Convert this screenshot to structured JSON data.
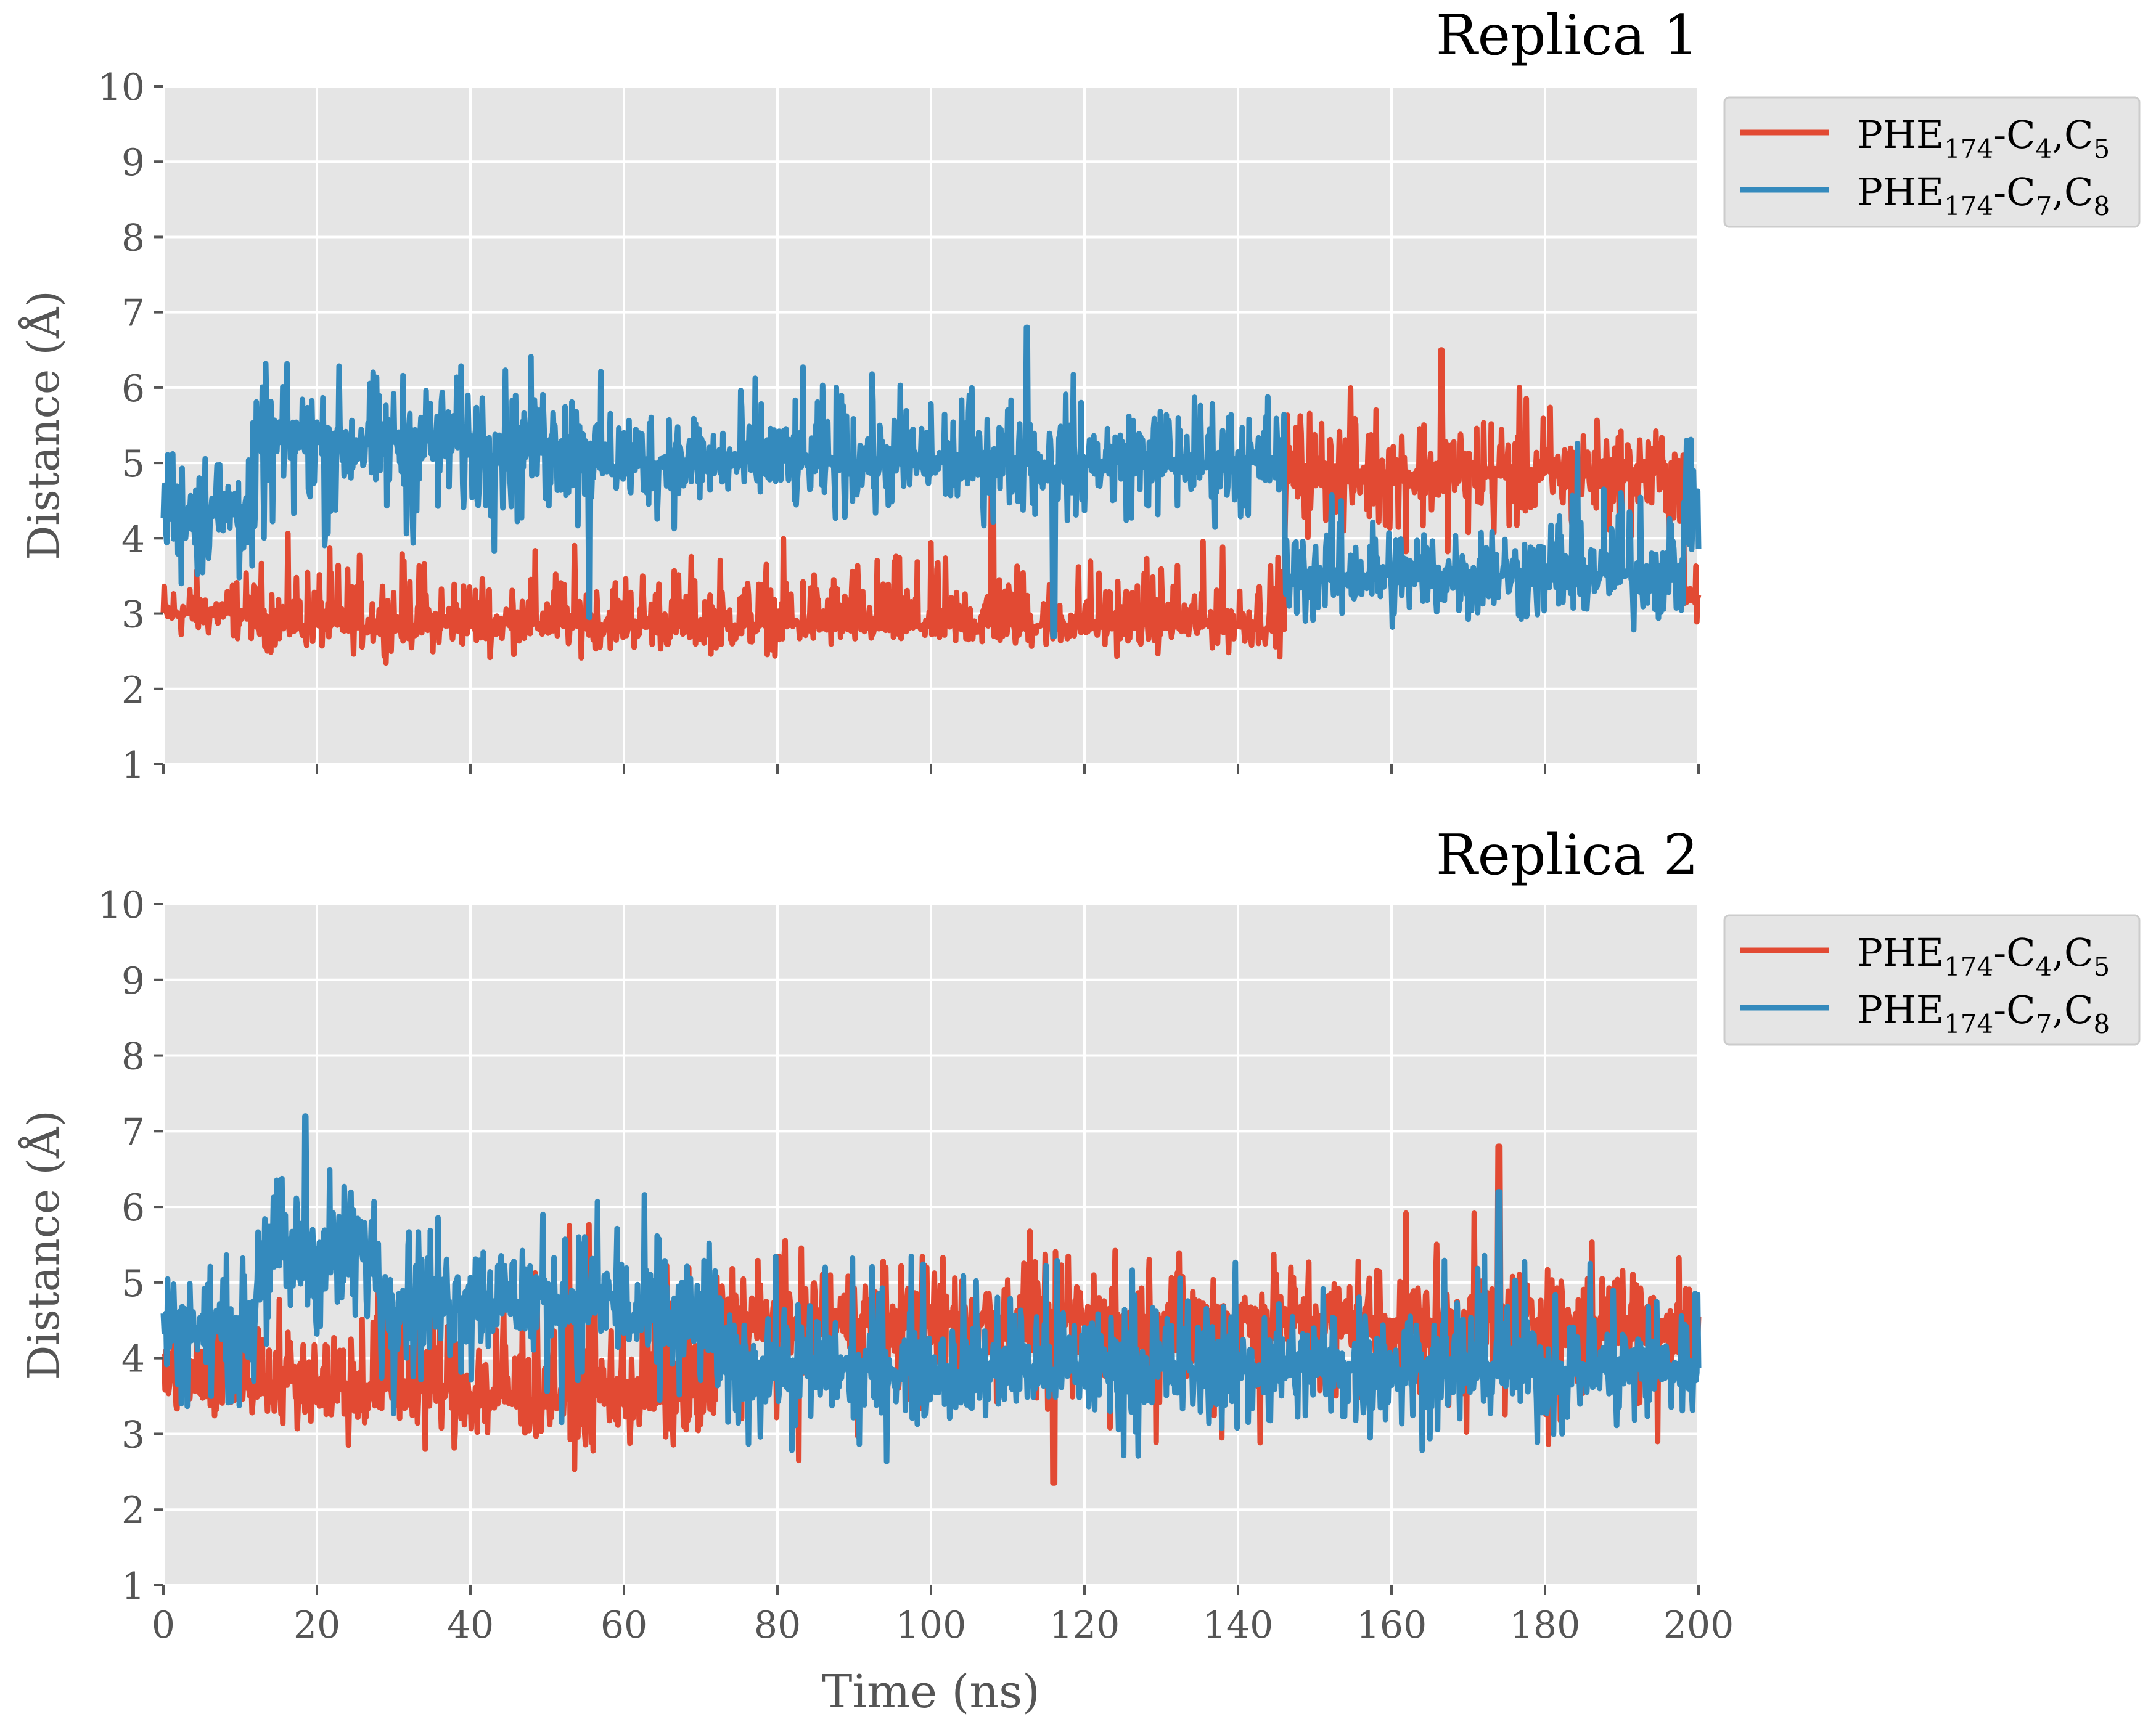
{
  "chart_data": [
    {
      "type": "line",
      "title": "Replica 1",
      "xlabel": "",
      "ylabel": "Distance (Å)",
      "xlim": [
        0,
        200
      ],
      "ylim": [
        1,
        10
      ],
      "xticks": [
        0,
        20,
        40,
        60,
        80,
        100,
        120,
        140,
        160,
        180,
        200
      ],
      "yticks": [
        1,
        2,
        3,
        4,
        5,
        6,
        7,
        8,
        9,
        10
      ],
      "show_xtick_labels": false,
      "grid": true,
      "legend_position": "outside-right-top",
      "series": [
        {
          "name": "PHE174-C4,C5",
          "label_parts": {
            "base": "PHE",
            "sub1": "174",
            "mid1": "-C",
            "sub2": "4",
            "mid2": ",C",
            "sub3": "5"
          },
          "color": "#E24A33",
          "segments": [
            {
              "t": [
                0,
                12
              ],
              "mean": 3.0,
              "low": 2.4,
              "high": 3.9
            },
            {
              "t": [
                12,
                146
              ],
              "mean": 2.85,
              "low": 2.3,
              "high": 4.3
            },
            {
              "t": [
                146,
                181
              ],
              "mean": 4.85,
              "low": 3.5,
              "high": 6.4
            },
            {
              "t": [
                181,
                198
              ],
              "mean": 4.9,
              "low": 3.2,
              "high": 6.0
            },
            {
              "t": [
                198,
                200
              ],
              "mean": 3.2,
              "low": 2.6,
              "high": 3.9
            }
          ],
          "spikes": [
            [
              166.5,
              6.5
            ],
            [
              108,
              5.1
            ]
          ]
        },
        {
          "name": "PHE174-C7,C8",
          "label_parts": {
            "base": "PHE",
            "sub1": "174",
            "mid1": "-C",
            "sub2": "7",
            "mid2": ",C",
            "sub3": "8"
          },
          "color": "#348ABD",
          "segments": [
            {
              "t": [
                0,
                12
              ],
              "mean": 4.4,
              "low": 2.6,
              "high": 6.0
            },
            {
              "t": [
                12,
                55
              ],
              "mean": 5.3,
              "low": 3.2,
              "high": 6.75
            },
            {
              "t": [
                55,
                146
              ],
              "mean": 5.0,
              "low": 3.8,
              "high": 6.6
            },
            {
              "t": [
                146,
                181
              ],
              "mean": 3.5,
              "low": 2.4,
              "high": 5.0
            },
            {
              "t": [
                181,
                198
              ],
              "mean": 3.5,
              "low": 2.4,
              "high": 5.8
            },
            {
              "t": [
                198,
                200
              ],
              "mean": 4.5,
              "low": 3.0,
              "high": 5.5
            }
          ],
          "spikes": [
            [
              112.5,
              6.8
            ],
            [
              116,
              2.7
            ],
            [
              55.5,
              2.95
            ]
          ]
        }
      ]
    },
    {
      "type": "line",
      "title": "Replica 2",
      "xlabel": "Time (ns)",
      "ylabel": "Distance (Å)",
      "xlim": [
        0,
        200
      ],
      "ylim": [
        1,
        10
      ],
      "xticks": [
        0,
        20,
        40,
        60,
        80,
        100,
        120,
        140,
        160,
        180,
        200
      ],
      "yticks": [
        1,
        2,
        3,
        4,
        5,
        6,
        7,
        8,
        9,
        10
      ],
      "show_xtick_labels": true,
      "grid": true,
      "legend_position": "outside-right-top",
      "series": [
        {
          "name": "PHE174-C4,C5",
          "label_parts": {
            "base": "PHE",
            "sub1": "174",
            "mid1": "-C",
            "sub2": "4",
            "mid2": ",C",
            "sub3": "5"
          },
          "color": "#E24A33",
          "segments": [
            {
              "t": [
                0,
                20
              ],
              "mean": 3.7,
              "low": 2.7,
              "high": 5.5
            },
            {
              "t": [
                20,
                40
              ],
              "mean": 3.6,
              "low": 2.4,
              "high": 6.0
            },
            {
              "t": [
                40,
                72
              ],
              "mean": 3.5,
              "low": 2.3,
              "high": 6.2
            },
            {
              "t": [
                72,
                200
              ],
              "mean": 4.5,
              "low": 2.4,
              "high": 6.0
            }
          ],
          "spikes": [
            [
              174,
              6.8
            ],
            [
              116,
              2.35
            ]
          ]
        },
        {
          "name": "PHE174-C7,C8",
          "label_parts": {
            "base": "PHE",
            "sub1": "174",
            "mid1": "-C",
            "sub2": "7",
            "mid2": ",C",
            "sub3": "8"
          },
          "color": "#348ABD",
          "segments": [
            {
              "t": [
                0,
                12
              ],
              "mean": 4.4,
              "low": 2.8,
              "high": 5.8
            },
            {
              "t": [
                12,
                28
              ],
              "mean": 5.4,
              "low": 3.2,
              "high": 7.2
            },
            {
              "t": [
                28,
                60
              ],
              "mean": 4.8,
              "low": 2.9,
              "high": 6.6
            },
            {
              "t": [
                60,
                72
              ],
              "mean": 4.5,
              "low": 2.7,
              "high": 6.5
            },
            {
              "t": [
                72,
                200
              ],
              "mean": 3.85,
              "low": 2.4,
              "high": 5.9
            }
          ],
          "spikes": [
            [
              174,
              6.2
            ],
            [
              18.5,
              7.2
            ]
          ]
        }
      ]
    }
  ]
}
